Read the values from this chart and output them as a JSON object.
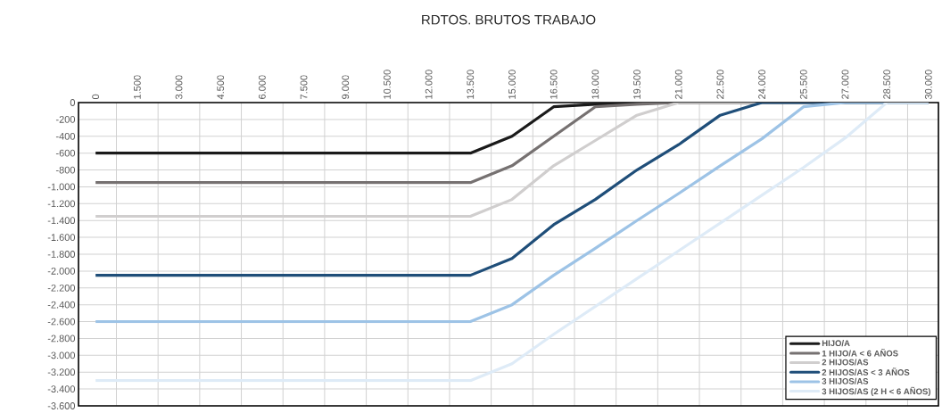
{
  "chart_data": {
    "type": "line",
    "title": "RDTOS. BRUTOS TRABAJO",
    "categories": [
      "0",
      "1.500",
      "3.000",
      "4.500",
      "6.000",
      "7.500",
      "9.000",
      "10.500",
      "12.000",
      "13.500",
      "15.000",
      "16.500",
      "18.000",
      "19.500",
      "21.000",
      "22.500",
      "24.000",
      "25.500",
      "27.000",
      "28.500",
      "30.000"
    ],
    "series": [
      {
        "name": "HIJO/A",
        "color": "#1a1a1a",
        "values": [
          -600,
          -600,
          -600,
          -600,
          -600,
          -600,
          -600,
          -600,
          -600,
          -600,
          -400,
          -50,
          -20,
          0,
          0,
          0,
          0,
          0,
          0,
          0,
          0
        ]
      },
      {
        "name": "1 HIJO/A < 6 AÑOS",
        "color": "#767171",
        "values": [
          -950,
          -950,
          -950,
          -950,
          -950,
          -950,
          -950,
          -950,
          -950,
          -950,
          -750,
          -400,
          -50,
          -20,
          0,
          0,
          0,
          0,
          0,
          0,
          0
        ]
      },
      {
        "name": "2 HIJOS/AS",
        "color": "#d0cece",
        "values": [
          -1350,
          -1350,
          -1350,
          -1350,
          -1350,
          -1350,
          -1350,
          -1350,
          -1350,
          -1350,
          -1150,
          -750,
          -450,
          -150,
          0,
          0,
          0,
          0,
          0,
          0,
          0
        ]
      },
      {
        "name": "2 HIJOS/AS < 3 AÑOS",
        "color": "#1f4e79",
        "values": [
          -2050,
          -2050,
          -2050,
          -2050,
          -2050,
          -2050,
          -2050,
          -2050,
          -2050,
          -2050,
          -1850,
          -1450,
          -1150,
          -800,
          -500,
          -150,
          0,
          0,
          0,
          0,
          0
        ]
      },
      {
        "name": "3 HIJOS/AS",
        "color": "#9dc3e6",
        "values": [
          -2600,
          -2600,
          -2600,
          -2600,
          -2600,
          -2600,
          -2600,
          -2600,
          -2600,
          -2600,
          -2400,
          -2050,
          -1730,
          -1400,
          -1080,
          -750,
          -430,
          -50,
          0,
          0,
          0
        ]
      },
      {
        "name": "3 HIJOS/AS (2 H < 6 AÑOS)",
        "color": "#deebf7",
        "values": [
          -3300,
          -3300,
          -3300,
          -3300,
          -3300,
          -3300,
          -3300,
          -3300,
          -3300,
          -3300,
          -3100,
          -2750,
          -2420,
          -2090,
          -1760,
          -1430,
          -1100,
          -770,
          -420,
          0,
          0
        ]
      }
    ],
    "ylim": [
      -3600,
      0
    ],
    "yticks": [
      0,
      -200,
      -400,
      -600,
      -800,
      {
        "value": -1000,
        "label": "-1.000"
      },
      {
        "value": -1200,
        "label": "-1.200"
      },
      {
        "value": -1400,
        "label": "-1.400"
      },
      {
        "value": -1600,
        "label": "-1.600"
      },
      {
        "value": -1800,
        "label": "-1.800"
      },
      {
        "value": -2000,
        "label": "-2.000"
      },
      {
        "value": -2200,
        "label": "-2.200"
      },
      {
        "value": -2400,
        "label": "-2.400"
      },
      {
        "value": -2600,
        "label": "-2.600"
      },
      {
        "value": -2800,
        "label": "-2.800"
      },
      {
        "value": -3000,
        "label": "-3.000"
      },
      {
        "value": -3200,
        "label": "-3.200"
      },
      {
        "value": -3400,
        "label": "-3.400"
      },
      {
        "value": -3600,
        "label": "-3.600"
      }
    ],
    "grid": true,
    "legend": "bottom right"
  }
}
